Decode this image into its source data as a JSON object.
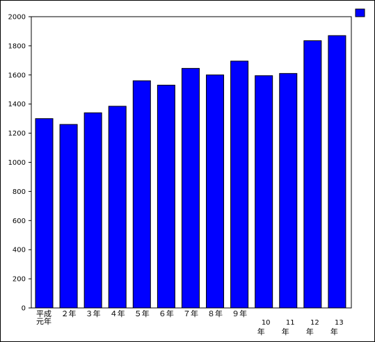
{
  "chart_data": {
    "type": "bar",
    "title": "",
    "xlabel": "",
    "ylabel": "",
    "categories": [
      "平成元年",
      "２年",
      "３年",
      "４年",
      "５年",
      "６年",
      "７年",
      "８年",
      "９年",
      "10年",
      "11年",
      "12年",
      "13年"
    ],
    "category_lines": [
      [
        "平成",
        "元年"
      ],
      [
        "２年"
      ],
      [
        "３年"
      ],
      [
        "４年"
      ],
      [
        "５年"
      ],
      [
        "６年"
      ],
      [
        "７年"
      ],
      [
        "８年"
      ],
      [
        "９年"
      ],
      [
        "10",
        "年"
      ],
      [
        "11",
        "年"
      ],
      [
        "12",
        "年"
      ],
      [
        "13",
        "年"
      ]
    ],
    "series": [
      {
        "values": [
          1300,
          1260,
          1340,
          1385,
          1560,
          1530,
          1645,
          1600,
          1695,
          1595,
          1610,
          1835,
          1870
        ]
      }
    ],
    "ylim": [
      0,
      2000
    ],
    "yticks": [
      "0",
      "200",
      "400",
      "600",
      "800",
      "1000",
      "1200",
      "1400",
      "1600",
      "1800",
      "2000"
    ],
    "grid": false,
    "legend_position": "top-right",
    "colors": {
      "bar": "#0000FF",
      "bar_stroke": "#000000",
      "axis": "#000000"
    }
  }
}
